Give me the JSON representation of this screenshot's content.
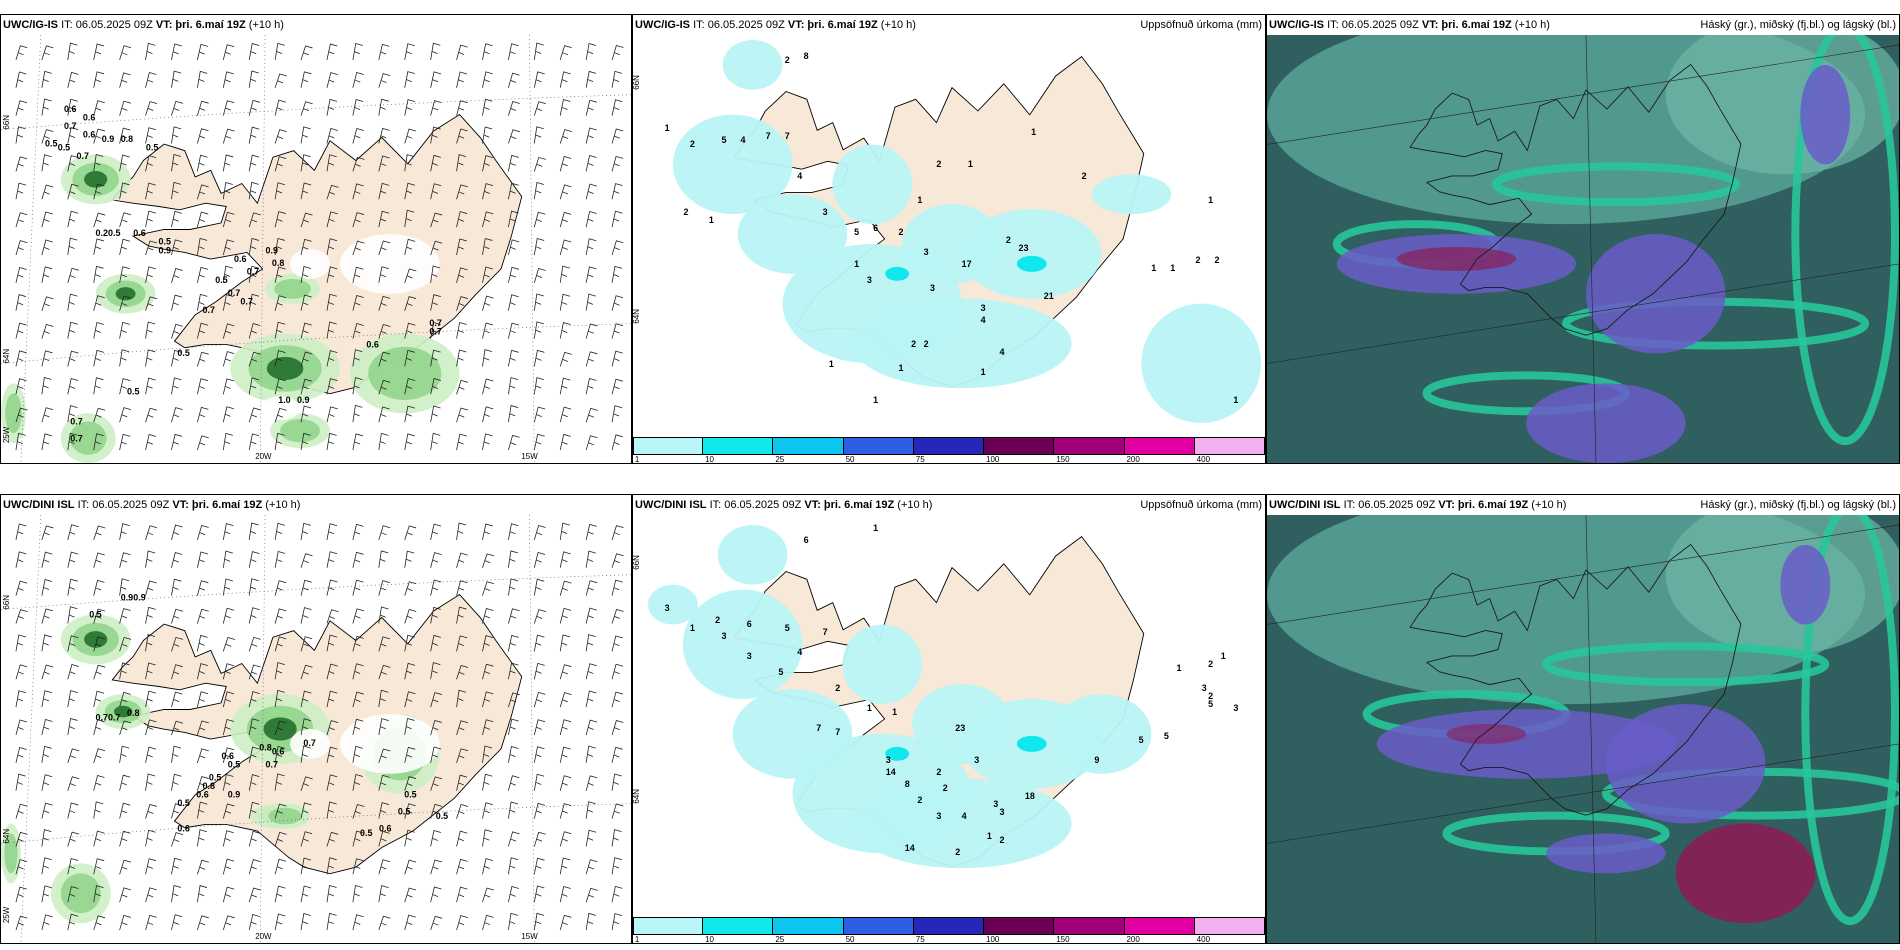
{
  "rows": [
    {
      "model": "UWC/IG-IS",
      "panels": [
        {
          "type": "wind",
          "it": "IT: 06.05.2025 09Z",
          "vt": "VT: þri. 6.maí 19Z",
          "lead": "(+10 h)",
          "right": ""
        },
        {
          "type": "precip",
          "it": "IT: 06.05.2025 09Z",
          "vt": "VT: þri. 6.maí 19Z",
          "lead": "(+10 h)",
          "right": "Uppsöfnuð úrkoma (mm)"
        },
        {
          "type": "cloud",
          "it": "IT: 06.05.2025 09Z",
          "vt": "VT: þri. 6.maí 19Z",
          "lead": "(+10 h)",
          "right": "Háský (gr.), miðský (fj.bl.) og lágský (bl.)"
        }
      ],
      "wind_labels": [
        "0.6",
        "0.6",
        "0.7",
        "0.6",
        "0.9",
        "0.5",
        "0.5",
        "0.7",
        "0.8",
        "0.5",
        "0.2",
        "0.5",
        "0.6",
        "0.5",
        "0.9",
        "0.6",
        "0.7",
        "0.9",
        "0.8",
        "0.5",
        "0.7",
        "0.7",
        "0.7",
        "0.5",
        "0.6",
        "0.7",
        "0.7",
        "0.5",
        "0.7",
        "0.7",
        "1.0",
        "0.9"
      ],
      "precip_labels": [
        "8",
        "2",
        "1",
        "2",
        "5",
        "4",
        "7",
        "7",
        "4",
        "2",
        "1",
        "1",
        "3",
        "5",
        "6",
        "2",
        "1",
        "3",
        "17",
        "2",
        "2",
        "1",
        "23",
        "1",
        "21",
        "3",
        "3",
        "3",
        "4",
        "2",
        "2",
        "4",
        "1",
        "2",
        "1",
        "1",
        "1",
        "2",
        "2",
        "1",
        "1",
        "1",
        "1"
      ],
      "axis_labels": {
        "lat_top": "66N",
        "lat_mid": "64N",
        "lon_w": "25W",
        "lon_mid": "20W",
        "lon_e": "15W",
        "prec_lat_top": "66N",
        "prec_lat_mid": "64N"
      }
    },
    {
      "model": "UWC/DINI ISL",
      "panels": [
        {
          "type": "wind",
          "it": "IT: 06.05.2025 09Z",
          "vt": "VT: þri. 6.maí 19Z",
          "lead": "(+10 h)",
          "right": ""
        },
        {
          "type": "precip",
          "it": "IT: 06.05.2025 09Z",
          "vt": "VT: þri. 6.maí 19Z",
          "lead": "(+10 h)",
          "right": "Uppsöfnuð úrkoma (mm)"
        },
        {
          "type": "cloud",
          "it": "IT: 06.05.2025 09Z",
          "vt": "VT: þri. 6.maí 19Z",
          "lead": "(+10 h)",
          "right": "Háský (gr.), miðský (fj.bl.) og lágský (bl.)"
        }
      ],
      "wind_labels": [
        "0.5",
        "0.9",
        "0.9",
        "0.7",
        "0.7",
        "0.8",
        "0.6",
        "0.5",
        "0.8",
        "0.6",
        "0.7",
        "0.7",
        "0.5",
        "0.8",
        "0.6",
        "0.9",
        "0.5",
        "0.6",
        "0.5",
        "0.5",
        "0.6",
        "0.5",
        "0.5"
      ],
      "precip_labels": [
        "6",
        "1",
        "3",
        "2",
        "1",
        "3",
        "6",
        "5",
        "7",
        "4",
        "3",
        "5",
        "2",
        "1",
        "1",
        "7",
        "7",
        "3",
        "14",
        "8",
        "23",
        "2",
        "2",
        "3",
        "18",
        "3",
        "3",
        "3",
        "4",
        "2",
        "2",
        "14",
        "1",
        "2",
        "9",
        "5",
        "5",
        "1",
        "2",
        "1",
        "2",
        "3",
        "3",
        "5"
      ],
      "axis_labels": {
        "lat_top": "66N",
        "lat_mid": "64N",
        "lon_w": "25W",
        "lon_mid": "20W",
        "lon_e": "15W",
        "prec_lat_top": "66N",
        "prec_lat_mid": "64N"
      }
    }
  ],
  "colorbar": {
    "ticks": [
      "1",
      "10",
      "25",
      "50",
      "75",
      "100",
      "150",
      "200",
      "400"
    ],
    "colors": [
      "#b8f6f8",
      "#10e8ee",
      "#10c4f0",
      "#2f5ee6",
      "#2626b8",
      "#6a0056",
      "#a0007a",
      "#e200a4",
      "#f2b0f2"
    ]
  },
  "colors": {
    "land": "#f7e8d8",
    "sea": "#ffffff",
    "green_light": "#cdeec4",
    "green_mid": "#8fd48a",
    "green_dark": "#2f7a36",
    "precip": "#b9f4f6",
    "cloud_bg": "#2f5f5f",
    "cloud_green": "#28c69a",
    "cloud_violet": "#6a5cc8",
    "cloud_red": "#8a1e55"
  }
}
